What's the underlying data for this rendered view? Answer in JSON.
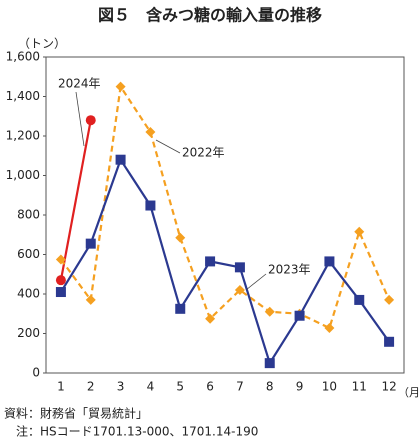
{
  "chart_data": {
    "type": "line",
    "title": "図５　含みつ糖の輸入量の推移",
    "y_label": "（トン）",
    "x_label": "（月）",
    "categories": [
      "1",
      "2",
      "3",
      "4",
      "5",
      "6",
      "7",
      "8",
      "9",
      "10",
      "11",
      "12"
    ],
    "series": [
      {
        "name": "2024年",
        "color": "#e02020",
        "marker": "circle",
        "dashed": false,
        "values": [
          470,
          1280,
          null,
          null,
          null,
          null,
          null,
          null,
          null,
          null,
          null,
          null
        ]
      },
      {
        "name": "2022年",
        "color": "#f5a020",
        "marker": "diamond",
        "dashed": true,
        "values": [
          575,
          370,
          1450,
          1220,
          685,
          275,
          420,
          310,
          300,
          228,
          715,
          370
        ]
      },
      {
        "name": "2023年",
        "color": "#2b3990",
        "marker": "square",
        "dashed": false,
        "values": [
          410,
          655,
          1080,
          848,
          325,
          565,
          535,
          50,
          290,
          565,
          370,
          158
        ]
      }
    ],
    "ylim": [
      0,
      1600
    ],
    "yticks": [
      0,
      200,
      400,
      600,
      800,
      {
        "value": 1000,
        "label": "1,000"
      },
      {
        "value": 1200,
        "label": "1,200"
      },
      {
        "value": 1400,
        "label": "1,400"
      },
      {
        "value": 1600,
        "label": "1,600"
      }
    ],
    "grid": false,
    "notes": [
      "資料：財務省「貿易統計」",
      "注：HSコード1701.13-000、1701.14-190"
    ]
  }
}
